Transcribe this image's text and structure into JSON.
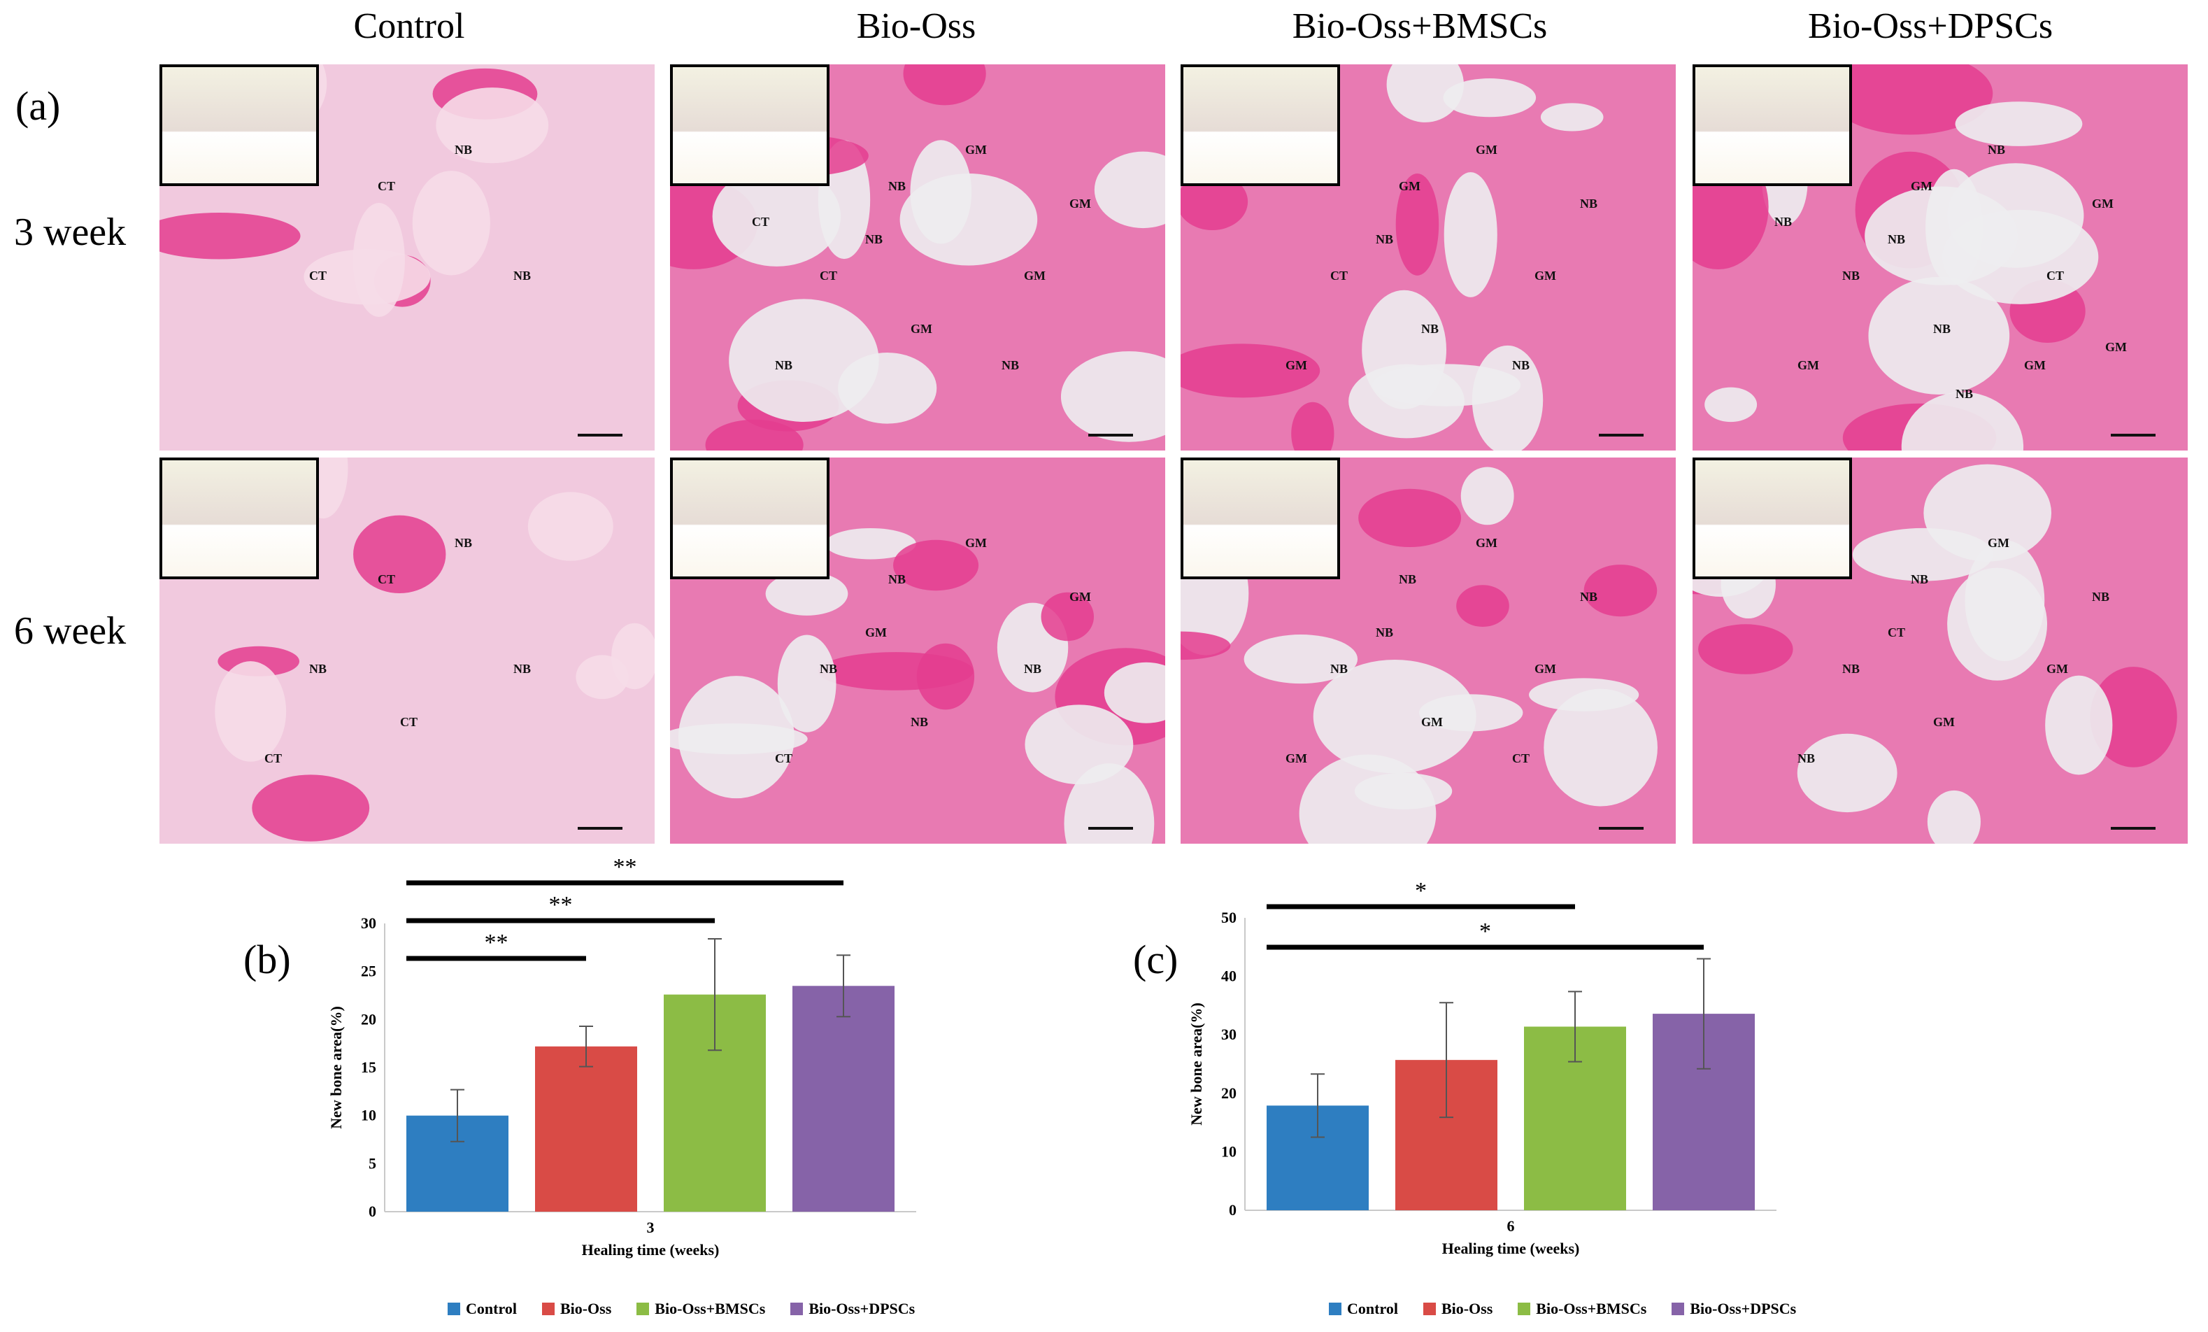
{
  "figure": {
    "panel_a_label": "(a)",
    "columns": [
      "Control",
      "Bio-Oss",
      "Bio-Oss+BMSCs",
      "Bio-Oss+DPSCs"
    ],
    "rows": [
      "3 week",
      "6 week"
    ],
    "tile_tags": {
      "r0c0": [
        "CT",
        "NB",
        "CT",
        "NB"
      ],
      "r0c1": [
        "NB",
        "GM",
        "CT",
        "GM",
        "GM",
        "NB",
        "GM",
        "NB",
        "NB",
        "CT"
      ],
      "r0c2": [
        "GM",
        "GM",
        "CT",
        "GM",
        "NB",
        "GM",
        "NB",
        "NB",
        "NB"
      ],
      "r0c3": [
        "GM",
        "NB",
        "NB",
        "CT",
        "NB",
        "GM",
        "GM",
        "NB",
        "GM",
        "NB",
        "NB",
        "GM"
      ],
      "r1c0": [
        "CT",
        "NB",
        "NB",
        "NB",
        "CT",
        "CT"
      ],
      "r1c1": [
        "NB",
        "GM",
        "NB",
        "NB",
        "NB",
        "CT",
        "GM",
        "GM"
      ],
      "r1c2": [
        "NB",
        "GM",
        "NB",
        "GM",
        "GM",
        "GM",
        "NB",
        "NB",
        "CT"
      ],
      "r1c3": [
        "NB",
        "GM",
        "NB",
        "GM",
        "GM",
        "NB",
        "NB",
        "CT"
      ]
    }
  },
  "colors": {
    "Control": "#2e7ec1",
    "Bio-Oss": "#d94b46",
    "Bio-Oss+BMSCs": "#8cbc45",
    "Bio-Oss+DPSCs": "#8663a8"
  },
  "chart_data": [
    {
      "type": "bar",
      "panel_label": "(b)",
      "categories": [
        "3"
      ],
      "xlabel": "Healing time (weeks)",
      "ylabel": "New bone area(%)",
      "ylim": [
        0,
        30
      ],
      "yticks": [
        0,
        5,
        10,
        15,
        20,
        25,
        30
      ],
      "series": [
        {
          "name": "Control",
          "values": [
            10.0
          ],
          "error": [
            2.7
          ]
        },
        {
          "name": "Bio-Oss",
          "values": [
            17.2
          ],
          "error": [
            2.1
          ]
        },
        {
          "name": "Bio-Oss+BMSCs",
          "values": [
            22.6
          ],
          "error": [
            5.8
          ]
        },
        {
          "name": "Bio-Oss+DPSCs",
          "values": [
            23.5
          ],
          "error": [
            3.2
          ]
        }
      ],
      "significance": [
        {
          "from": "Control",
          "to": "Bio-Oss",
          "label": "**"
        },
        {
          "from": "Control",
          "to": "Bio-Oss+BMSCs",
          "label": "**"
        },
        {
          "from": "Control",
          "to": "Bio-Oss+DPSCs",
          "label": "**"
        }
      ],
      "legend": [
        "Control",
        "Bio-Oss",
        "Bio-Oss+BMSCs",
        "Bio-Oss+DPSCs"
      ],
      "legend_position": "bottom"
    },
    {
      "type": "bar",
      "panel_label": "(c)",
      "categories": [
        "6"
      ],
      "xlabel": "Healing time (weeks)",
      "ylabel": "New bone area(%)",
      "ylim": [
        0,
        50
      ],
      "yticks": [
        0,
        10,
        20,
        30,
        40,
        50
      ],
      "series": [
        {
          "name": "Control",
          "values": [
            17.9
          ],
          "error": [
            5.4
          ]
        },
        {
          "name": "Bio-Oss",
          "values": [
            25.7
          ],
          "error": [
            9.8
          ]
        },
        {
          "name": "Bio-Oss+BMSCs",
          "values": [
            31.4
          ],
          "error": [
            6.0
          ]
        },
        {
          "name": "Bio-Oss+DPSCs",
          "values": [
            33.6
          ],
          "error": [
            9.4
          ]
        }
      ],
      "significance": [
        {
          "from": "Control",
          "to": "Bio-Oss+BMSCs",
          "label": "*"
        },
        {
          "from": "Control",
          "to": "Bio-Oss+DPSCs",
          "label": "*"
        }
      ],
      "legend": [
        "Control",
        "Bio-Oss",
        "Bio-Oss+BMSCs",
        "Bio-Oss+DPSCs"
      ],
      "legend_position": "bottom"
    }
  ]
}
